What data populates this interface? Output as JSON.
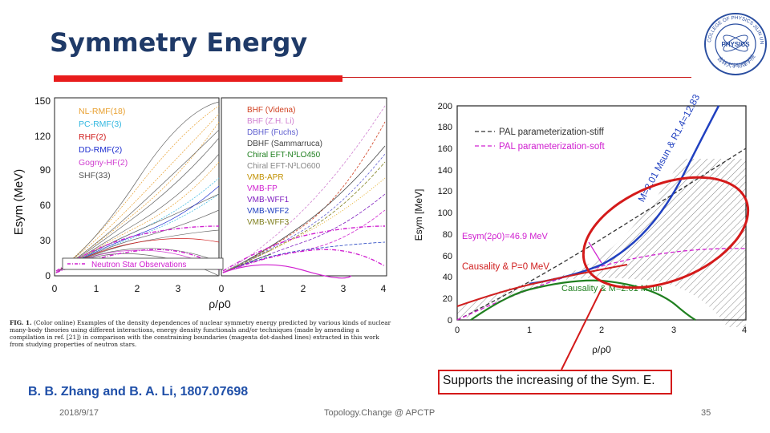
{
  "slide": {
    "title": "Symmetry Energy",
    "reference": "B. B. Zhang and B. A. Li, 1807.07698",
    "support_text": "Supports the increasing of the Sym. E.",
    "footer": {
      "date": "2018/9/17",
      "center": "Topology.Change @ APCTP",
      "page": "35"
    },
    "accent_color": "#e81c1c",
    "title_color": "#1f3a68"
  },
  "logo": {
    "top_text": "COLLEGE OF PHYSICS JILIN UNIVERSITY",
    "center_text": "PHYSICS",
    "bottom_text": "吉林大学物理学院"
  },
  "caption": {
    "label": "FIG. 1.",
    "text": "(Color online) Examples of the density dependences of nuclear symmetry energy predicted by various kinds of nuclear many-body theories using different interactions, energy density functionals and/or techniques (made by amending a compilation in ref. [21]) in comparison with the constraining boundaries (magenta dot-dashed lines) extracted in this work from studying properties of neutron stars."
  },
  "chart_data": [
    {
      "type": "line",
      "title": "",
      "ylabel": "Esym (MeV)",
      "xlabel": "ρ/ρ0",
      "panels": [
        {
          "xlim": [
            0,
            4
          ],
          "ylim": [
            0,
            150
          ],
          "x_ticks": [
            "0",
            "1",
            "2",
            "3"
          ],
          "y_ticks": [
            "0",
            "30",
            "60",
            "90",
            "120",
            "150"
          ],
          "legend": [
            {
              "label": "NL-RMF(18)",
              "color": "#e8a030"
            },
            {
              "label": "PC-RMF(3)",
              "color": "#35b8e0"
            },
            {
              "label": "RHF(2)",
              "color": "#d02020"
            },
            {
              "label": "DD-RMF(2)",
              "color": "#2030d0"
            },
            {
              "label": "Gogny-HF(2)",
              "color": "#d040d0"
            },
            {
              "label": "SHF(33)",
              "color": "#666666"
            }
          ],
          "annotation": "Neutron Star Observations",
          "series": [
            {
              "name": "NL-RMF",
              "color": "#e8a030",
              "x": [
                0.1,
                1,
                2,
                3,
                4
              ],
              "y": [
                4,
                32,
                68,
                105,
                140
              ]
            },
            {
              "name": "PC-RMF",
              "color": "#35b8e0",
              "x": [
                0.1,
                1,
                2,
                3,
                4
              ],
              "y": [
                4,
                31,
                58,
                86,
                112
              ]
            },
            {
              "name": "SHF soft",
              "color": "#666666",
              "x": [
                0.1,
                1,
                2,
                3,
                4
              ],
              "y": [
                5,
                31,
                28,
                12,
                0
              ]
            },
            {
              "name": "SHF stiff",
              "color": "#666666",
              "x": [
                0.1,
                1,
                2,
                3,
                4
              ],
              "y": [
                5,
                32,
                80,
                130,
                150
              ]
            },
            {
              "name": "Boundary upper",
              "color": "#d020d0",
              "x": [
                0.1,
                1,
                2,
                3,
                4
              ],
              "y": [
                8,
                33,
                46,
                52,
                54
              ]
            },
            {
              "name": "Boundary lower",
              "color": "#d020d0",
              "x": [
                0.1,
                1,
                2,
                3,
                4
              ],
              "y": [
                5,
                30,
                38,
                30,
                15
              ]
            }
          ]
        },
        {
          "xlim": [
            0,
            4
          ],
          "ylim": [
            0,
            150
          ],
          "x_ticks": [
            "0",
            "1",
            "2",
            "3",
            "4"
          ],
          "legend": [
            {
              "label": "BHF (Videna)",
              "color": "#d04020"
            },
            {
              "label": "BHF (Z.H. Li)",
              "color": "#d080d0"
            },
            {
              "label": "DBHF (Fuchs)",
              "color": "#6060d0"
            },
            {
              "label": "DBHF (Sammarruca)",
              "color": "#444444"
            },
            {
              "label": "Chiral EFT-N³LO450",
              "color": "#208020"
            },
            {
              "label": "Chiral EFT-N³LO600",
              "color": "#888888"
            },
            {
              "label": "VMB-APR",
              "color": "#e0a000"
            },
            {
              "label": "VMB-FP",
              "color": "#d020d0"
            },
            {
              "label": "VMB-WFF1",
              "color": "#8020c0"
            },
            {
              "label": "VMB-WFF2",
              "color": "#2040c0"
            },
            {
              "label": "VMB-WFF3",
              "color": "#808020"
            }
          ]
        }
      ]
    },
    {
      "type": "line",
      "xlabel": "ρ/ρ0",
      "ylabel": "Esym [MeV]",
      "xlim": [
        0,
        4
      ],
      "ylim": [
        0,
        200
      ],
      "x_ticks": [
        "0",
        "1",
        "2",
        "3",
        "4"
      ],
      "y_ticks": [
        "0",
        "20",
        "40",
        "60",
        "80",
        "100",
        "120",
        "140",
        "160",
        "180",
        "200"
      ],
      "legend": [
        {
          "label": "PAL parameterization-stiff",
          "color": "#333333"
        },
        {
          "label": "PAL parameterization-soft",
          "color": "#d020d0"
        }
      ],
      "annotations": {
        "mass_radius": "M=2.01 Msun & R1.4=12.83 km",
        "esym_value": "Esym(2ρ0)=46.9 MeV",
        "causality_p": "Causality & P=0 MeV",
        "causality_m": "Causality & M=2.01 Msun"
      },
      "series": [
        {
          "name": "PAL stiff",
          "color": "#333333",
          "x": [
            0,
            1,
            2,
            3,
            4
          ],
          "y": [
            0,
            31,
            75,
            118,
            160
          ]
        },
        {
          "name": "PAL soft",
          "color": "#d020d0",
          "x": [
            0,
            1,
            2,
            3,
            4
          ],
          "y": [
            0,
            31,
            50,
            60,
            66
          ]
        },
        {
          "name": "M=2.01 boundary",
          "color": "#2040c0",
          "x": [
            1,
            1.5,
            2,
            2.5,
            3,
            3.6
          ],
          "y": [
            34,
            40,
            52,
            78,
            120,
            200
          ]
        },
        {
          "name": "Causality P=0",
          "color": "#d02020",
          "x": [
            0,
            0.5,
            1,
            2,
            3
          ],
          "y": [
            13,
            24,
            31,
            45,
            60
          ]
        },
        {
          "name": "Causality M=2.01",
          "color": "#208020",
          "x": [
            0.2,
            1,
            1.5,
            2,
            2.5,
            3,
            3.4
          ],
          "y": [
            0,
            28,
            35,
            38,
            36,
            20,
            0
          ]
        }
      ]
    }
  ]
}
